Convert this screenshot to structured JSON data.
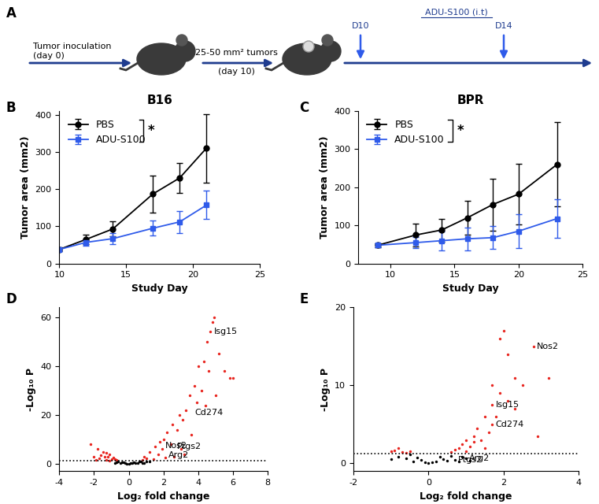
{
  "diagram": {
    "panel": "A",
    "start_text": "Tumor inoculation\n(day 0)",
    "size_text": "25-50 mm² tumors",
    "size_day": "(day 10)",
    "treatment": "ADU-S100 (i.t)",
    "doses": [
      "D10",
      "D14"
    ]
  },
  "chart_data": [
    {
      "type": "line",
      "panel": "B",
      "title": "B16",
      "x_label": "Study Day",
      "y_label": "Tumor area (mm2)",
      "xlim": [
        10,
        25
      ],
      "xticks": [
        10,
        15,
        20,
        25
      ],
      "ylim": [
        0,
        410
      ],
      "yticks": [
        0,
        100,
        200,
        300,
        400
      ],
      "legend": "upper left",
      "annotation": "*",
      "x": [
        10,
        12,
        14,
        17,
        19,
        21
      ],
      "series": [
        {
          "name": "PBS",
          "color": "#000000",
          "marker": "circle",
          "values": [
            38,
            65,
            93,
            187,
            230,
            310
          ],
          "errors": [
            5,
            12,
            20,
            50,
            40,
            92
          ]
        },
        {
          "name": "ADU-S100",
          "color": "#2f5bea",
          "marker": "square",
          "values": [
            38,
            57,
            67,
            95,
            112,
            157
          ],
          "errors": [
            5,
            8,
            15,
            20,
            30,
            38
          ]
        }
      ]
    },
    {
      "type": "line",
      "panel": "C",
      "title": "BPR",
      "x_label": "Study Day",
      "y_label": "Tumor area (mm2)",
      "xlim": [
        7.5,
        25
      ],
      "xticks": [
        10,
        15,
        20,
        25
      ],
      "ylim": [
        0,
        400
      ],
      "yticks": [
        0,
        100,
        200,
        300,
        400
      ],
      "legend": "upper left",
      "annotation": "*",
      "x": [
        9,
        12,
        14,
        16,
        18,
        20,
        23
      ],
      "series": [
        {
          "name": "PBS",
          "color": "#000000",
          "marker": "circle",
          "values": [
            48,
            75,
            88,
            120,
            155,
            182,
            260
          ],
          "errors": [
            6,
            30,
            30,
            45,
            68,
            80,
            110
          ]
        },
        {
          "name": "ADU-S100",
          "color": "#2f5bea",
          "marker": "square",
          "values": [
            48,
            55,
            60,
            65,
            68,
            85,
            118
          ],
          "errors": [
            6,
            15,
            25,
            30,
            30,
            45,
            50
          ]
        }
      ]
    },
    {
      "type": "scatter",
      "panel": "D",
      "x_label": "Log₂ fold change",
      "y_label": "-Log₁₀ P",
      "xlim": [
        -4,
        8
      ],
      "xticks": [
        -4,
        -2,
        0,
        2,
        4,
        6,
        8
      ],
      "ylim": [
        -3,
        64
      ],
      "yticks": [
        0,
        20,
        40,
        60
      ],
      "threshold": 1.3,
      "series": [
        {
          "color": "#e8251f",
          "marker": "circle",
          "x": [
            4.9,
            4.8,
            4.5,
            5.2,
            4.3,
            4.0,
            5.8,
            4.6,
            3.8,
            4.2,
            3.5,
            5.0,
            3.9,
            3.3,
            4.4,
            2.9,
            3.1,
            2.5,
            2.8,
            2.2,
            3.6,
            2.0,
            1.8,
            2.4,
            1.5,
            1.2,
            1.7,
            0.9,
            2.6,
            3.2,
            1.0,
            1.4,
            0.8,
            2.1,
            1.9,
            3.0,
            -2.2,
            -1.8,
            -1.5,
            -1.3,
            -1.1,
            -1.6,
            -1.2,
            -0.9,
            -1.4,
            -1.0,
            -0.8,
            -1.3,
            -1.7,
            -2.0,
            -0.7,
            -1.1,
            -1.9,
            6.0,
            5.5,
            4.7
          ],
          "y": [
            60,
            58,
            50,
            45,
            42,
            40,
            35,
            38,
            32,
            30,
            28,
            28,
            25,
            22,
            24,
            20,
            18,
            16,
            14,
            13,
            12,
            10,
            9,
            8,
            7,
            5,
            4,
            3,
            3,
            4,
            2.2,
            1.8,
            1.6,
            2.5,
            6,
            6,
            8,
            6,
            5,
            4.5,
            4,
            3.5,
            3,
            2.5,
            2.8,
            2,
            1.8,
            1.6,
            2.2,
            3,
            1.5,
            1.4,
            1.7,
            35,
            38,
            54
          ]
        },
        {
          "color": "#000000",
          "marker": "circle",
          "x": [
            -0.6,
            -0.4,
            -0.2,
            0,
            0.2,
            0.4,
            0.6,
            -0.5,
            0.1,
            -0.1,
            0.3,
            0.5,
            -0.3,
            0.7,
            -0.7,
            0.8,
            1.0,
            1.2,
            -0.8,
            0.9
          ],
          "y": [
            1.0,
            0.7,
            0.4,
            0.1,
            0.3,
            0.5,
            0.9,
            0.3,
            0.2,
            0.1,
            0.8,
            0.2,
            0.6,
            1.1,
            0.8,
            0.5,
            0.9,
            1.0,
            0.4,
            0.3
          ]
        }
      ],
      "genes": [
        {
          "name": "Isg15",
          "x": 4.7,
          "y": 54
        },
        {
          "name": "Cd274",
          "x": 3.6,
          "y": 21
        },
        {
          "name": "Nos2",
          "x": 1.9,
          "y": 7.5
        },
        {
          "name": "Ptgs2",
          "x": 2.6,
          "y": 7.2
        },
        {
          "name": "Arg2",
          "x": 2.1,
          "y": 3.5
        }
      ]
    },
    {
      "type": "scatter",
      "panel": "E",
      "x_label": "Log₂ fold change",
      "y_label": "-Log₁₀ P",
      "xlim": [
        -2,
        4
      ],
      "xticks": [
        -2,
        0,
        2,
        4
      ],
      "ylim": [
        -1,
        20
      ],
      "yticks": [
        0,
        10,
        20
      ],
      "threshold": 1.3,
      "series": [
        {
          "color": "#e8251f",
          "marker": "circle",
          "x": [
            2.0,
            1.9,
            2.8,
            2.1,
            3.2,
            2.3,
            2.5,
            1.7,
            1.9,
            1.7,
            2.1,
            2.3,
            1.5,
            1.7,
            1.3,
            1.6,
            1.2,
            1.0,
            1.4,
            0.9,
            1.1,
            0.8,
            0.7,
            1.5,
            2.9,
            1.8,
            1.2,
            1.0,
            0.6,
            -0.8,
            -0.9,
            -0.7,
            -1.0,
            -0.6,
            -0.5
          ],
          "y": [
            17,
            16,
            15,
            14,
            11,
            11,
            10,
            10,
            9,
            7.5,
            8,
            7,
            6,
            5,
            4.5,
            4,
            3.5,
            3,
            3,
            2.5,
            2.2,
            2,
            1.8,
            2,
            3.5,
            6,
            2.8,
            1.6,
            1.5,
            2,
            1.7,
            1.5,
            1.6,
            1.4,
            1.6
          ]
        },
        {
          "color": "#000000",
          "marker": "circle",
          "x": [
            -0.5,
            -0.3,
            -0.2,
            0,
            0.2,
            0.4,
            0.6,
            -0.6,
            0.1,
            -0.1,
            0.3,
            0.5,
            0.7,
            0.9,
            1.0,
            -0.8,
            -1.0,
            0.8,
            1.1,
            -0.4
          ],
          "y": [
            1.2,
            0.8,
            0.5,
            0.1,
            0.3,
            0.6,
            1.0,
            0.7,
            0.2,
            0.2,
            0.9,
            0.4,
            0.5,
            0.9,
            0.7,
            0.9,
            0.6,
            0.3,
            0.4,
            0.3
          ]
        }
      ],
      "genes": [
        {
          "name": "Nos2",
          "x": 2.8,
          "y": 15
        },
        {
          "name": "Isg15",
          "x": 1.7,
          "y": 7.5
        },
        {
          "name": "Cd274",
          "x": 1.7,
          "y": 5.0
        },
        {
          "name": "Ptgs2",
          "x": 0.7,
          "y": 0.5
        },
        {
          "name": "Arg2",
          "x": 1.0,
          "y": 0.7
        }
      ]
    }
  ]
}
